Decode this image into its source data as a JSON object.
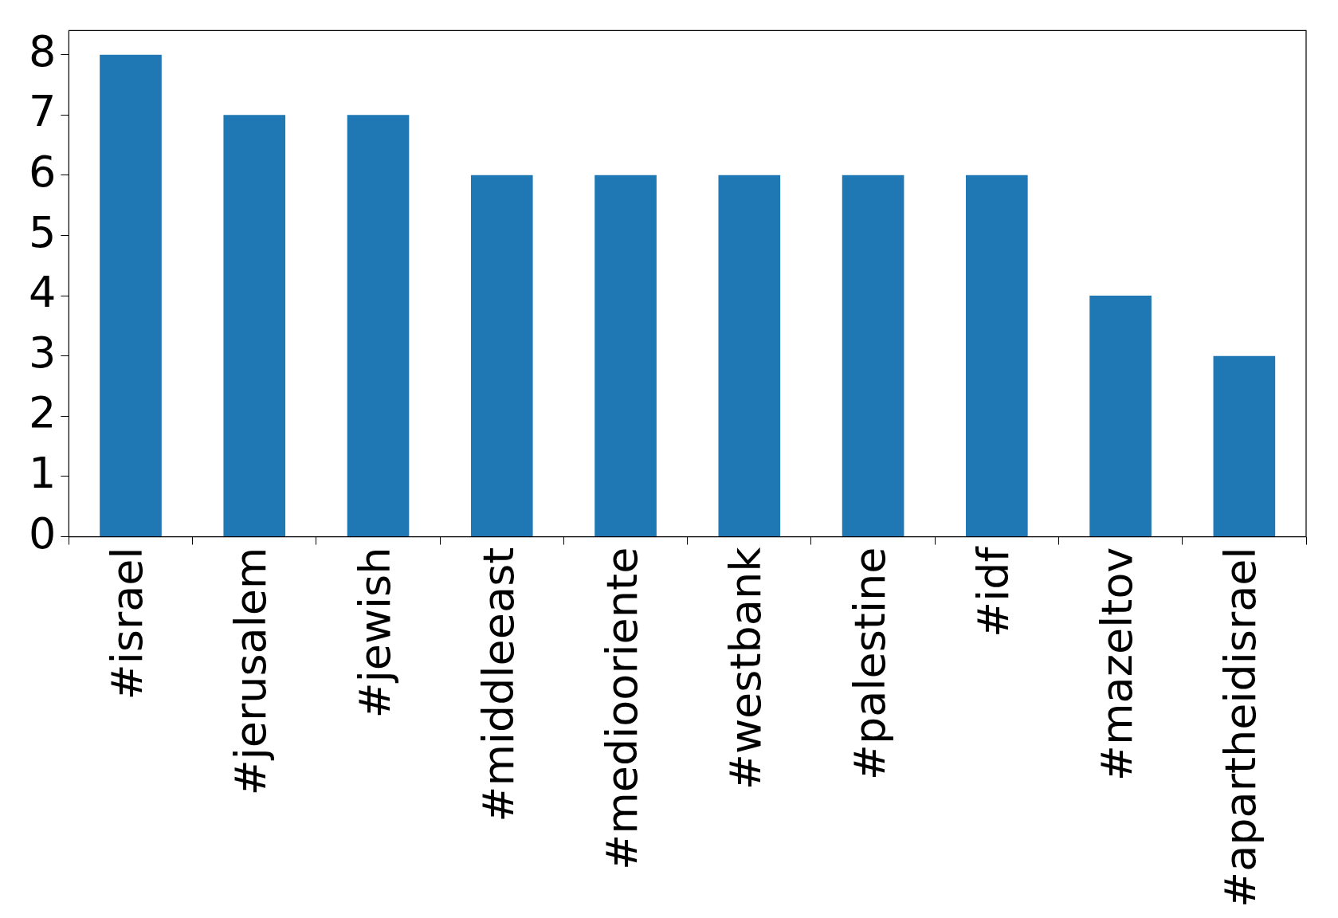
{
  "chart_data": {
    "type": "bar",
    "categories": [
      "#israel",
      "#jerusalem",
      "#jewish",
      "#middleeast",
      "#mediooriente",
      "#westbank",
      "#palestine",
      "#idf",
      "#mazeltov",
      "#apartheidisrael"
    ],
    "values": [
      8,
      7,
      7,
      6,
      6,
      6,
      6,
      6,
      4,
      3
    ],
    "color": "#1f77b4",
    "ylim": [
      0,
      8.4
    ],
    "yticks": [
      0,
      1,
      2,
      3,
      4,
      5,
      6,
      7,
      8
    ],
    "grid": false,
    "legend": false
  }
}
